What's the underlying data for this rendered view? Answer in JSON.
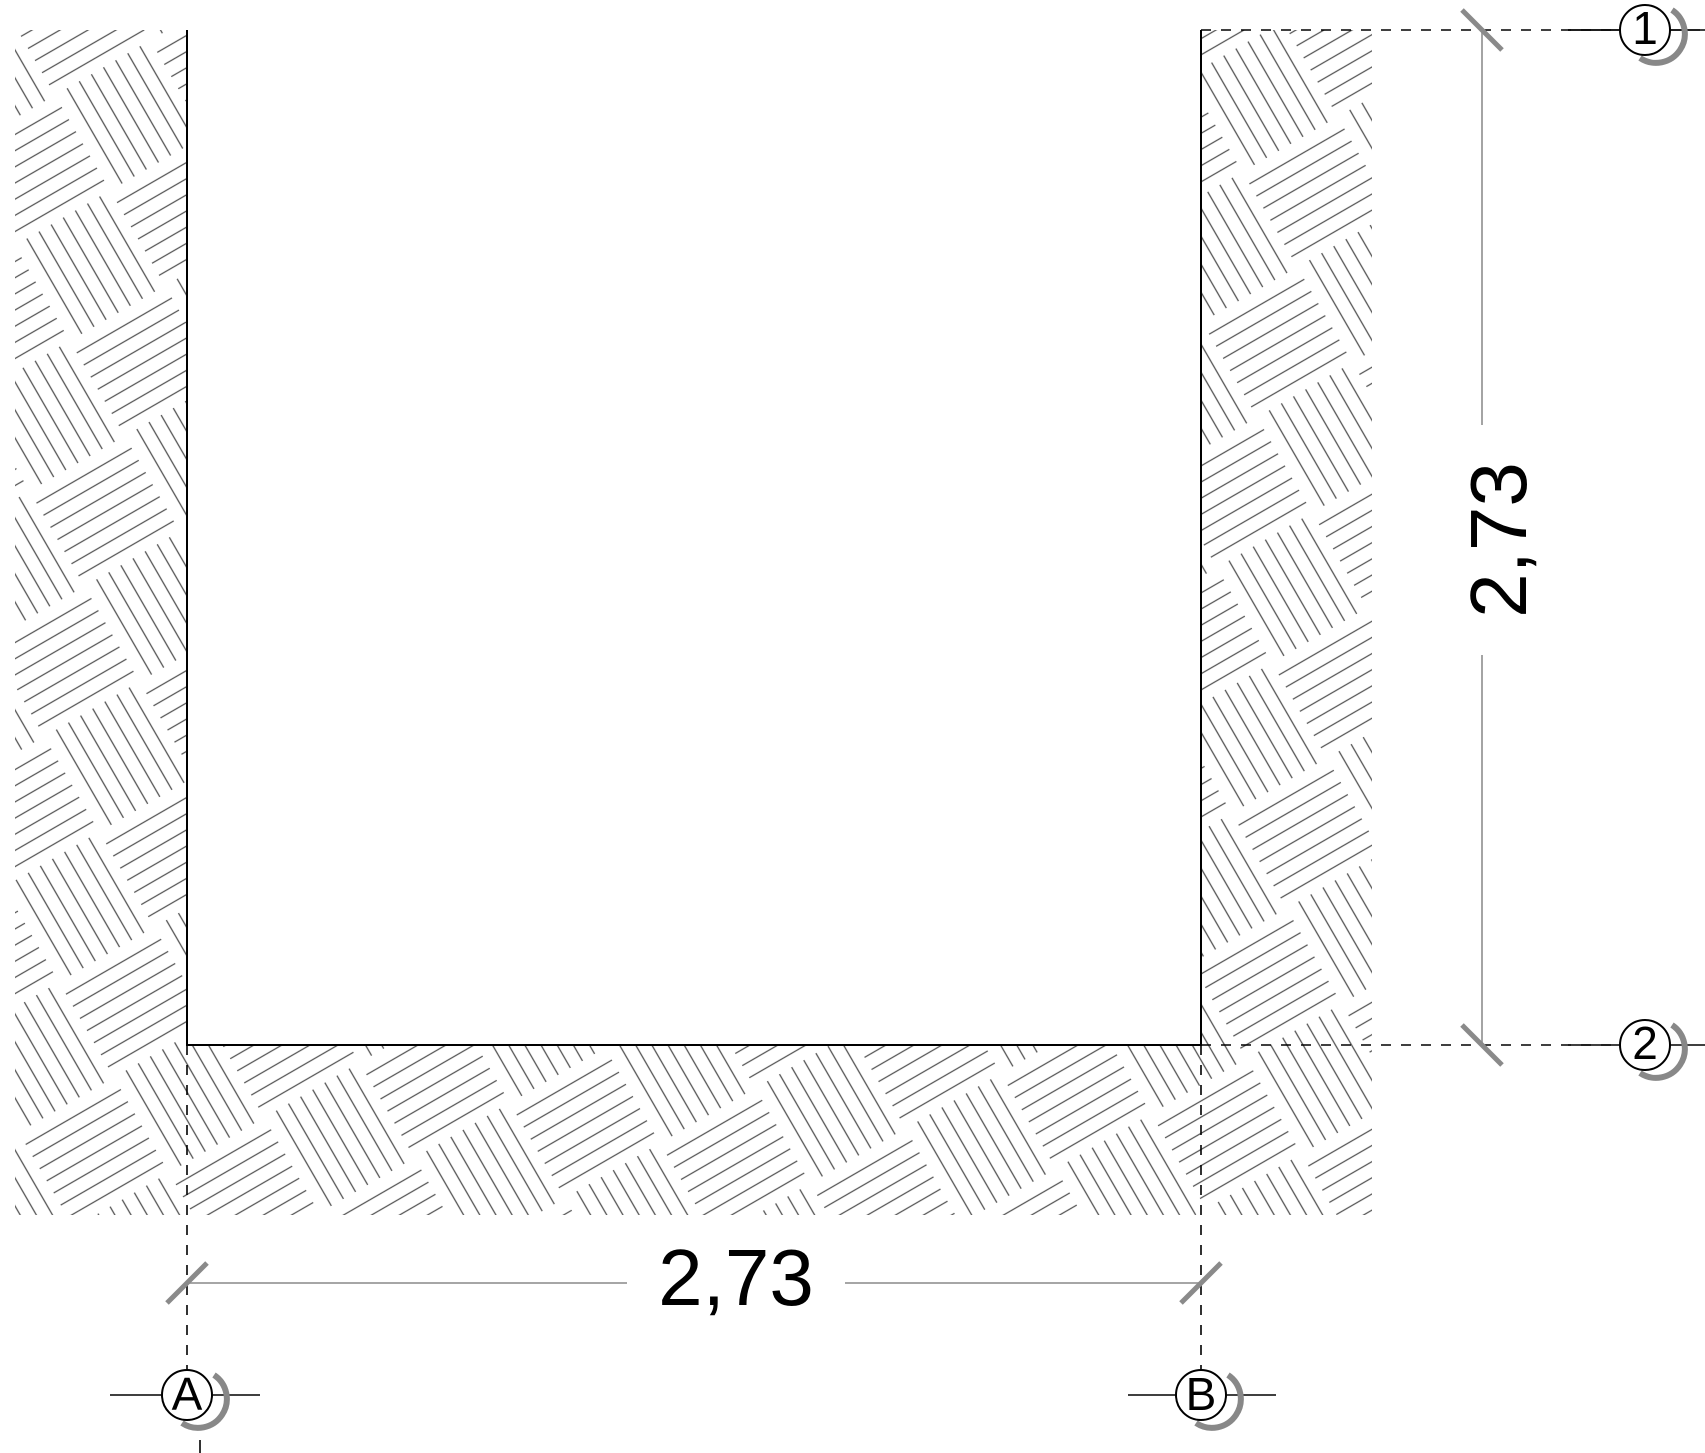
{
  "dimensions": {
    "horizontal": {
      "label": "2,73"
    },
    "vertical": {
      "label": "2,73"
    }
  },
  "grid_bubbles": [
    {
      "id": "1",
      "label": "1"
    },
    {
      "id": "2",
      "label": "2"
    },
    {
      "id": "A",
      "label": "A"
    },
    {
      "id": "B",
      "label": "B"
    }
  ],
  "colors": {
    "outline": "#000000",
    "hatch": "#555555",
    "dimension_line": "#9a9a9a",
    "tick": "#8a8a8a",
    "grid_line": "#000000",
    "bubble_shadow": "#888888"
  }
}
